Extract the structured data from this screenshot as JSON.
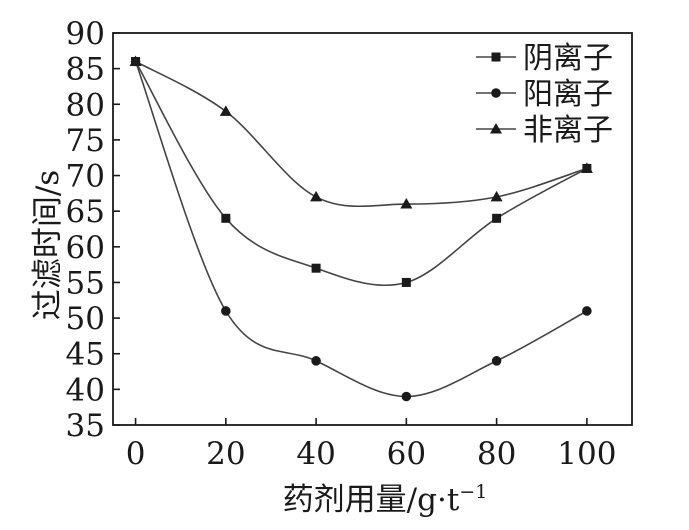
{
  "chart_data": {
    "type": "line",
    "title": "",
    "xlabel": "药剂用量/g·t",
    "xlabel_superscript": "−1",
    "ylabel": "过滤时间/s",
    "x": [
      0,
      20,
      40,
      60,
      80,
      100
    ],
    "xlim": [
      -5,
      110
    ],
    "ylim": [
      35,
      90
    ],
    "xticks": [
      "0",
      "20",
      "40",
      "60",
      "80",
      "100"
    ],
    "yticks": [
      "35",
      "40",
      "45",
      "50",
      "55",
      "60",
      "65",
      "70",
      "75",
      "80",
      "85",
      "90"
    ],
    "grid": false,
    "legend_position": "top-right",
    "series": [
      {
        "name": "阴离子",
        "marker": "square",
        "values": [
          86,
          64,
          57,
          55,
          64,
          71
        ]
      },
      {
        "name": "阳离子",
        "marker": "circle",
        "values": [
          86,
          51,
          44,
          39,
          44,
          51
        ]
      },
      {
        "name": "非离子",
        "marker": "triangle",
        "values": [
          86,
          79,
          67,
          66,
          67,
          71
        ]
      }
    ],
    "colors": {
      "axis": "#1a1a1a",
      "line": "#444444",
      "marker": "#1a1a1a"
    }
  }
}
